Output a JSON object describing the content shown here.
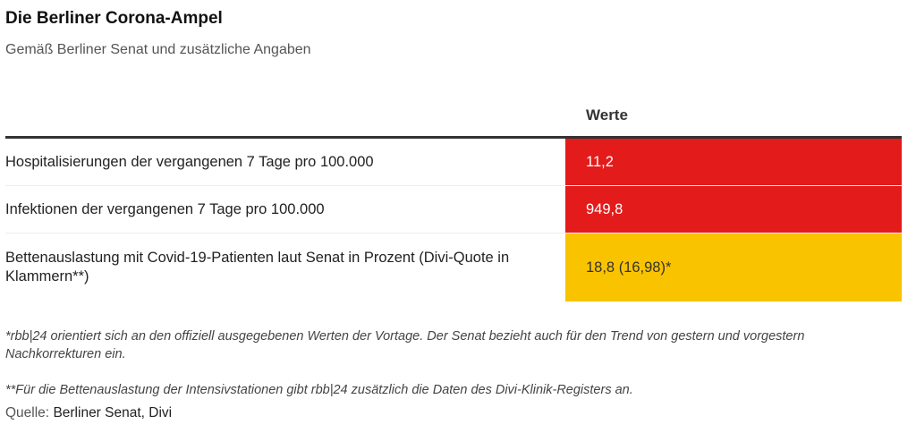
{
  "title": "Die Berliner Corona-Ampel",
  "subtitle": "Gemäß Berliner Senat und zusätzliche Angaben",
  "table": {
    "column_header": "Werte",
    "rows": [
      {
        "label": "Hospitalisierungen der vergangenen 7 Tage pro 100.000",
        "value": "11,2",
        "color": "#e31b1b",
        "text_color": "#ffffff"
      },
      {
        "label": "Infektionen der vergangenen 7 Tage pro 100.000",
        "value": "949,8",
        "color": "#e31b1b",
        "text_color": "#ffffff"
      },
      {
        "label": "Bettenauslastung mit Covid-19-Patienten laut Senat in Prozent (Divi-Quote in Klammern**)",
        "value": "18,8 (16,98)*",
        "color": "#f9c300",
        "text_color": "#333333"
      }
    ]
  },
  "notes": [
    "*rbb|24 orientiert sich an den offiziell ausgegebenen Werten der Vortage. Der Senat bezieht auch für den Trend von gestern und vorgestern Nachkorrekturen ein.",
    "**Für die Bettenauslastung der Intensivstationen gibt rbb|24 zusätzlich die Daten des Divi-Klinik-Registers an."
  ],
  "source": {
    "label": "Quelle:",
    "value": "Berliner Senat, Divi"
  }
}
